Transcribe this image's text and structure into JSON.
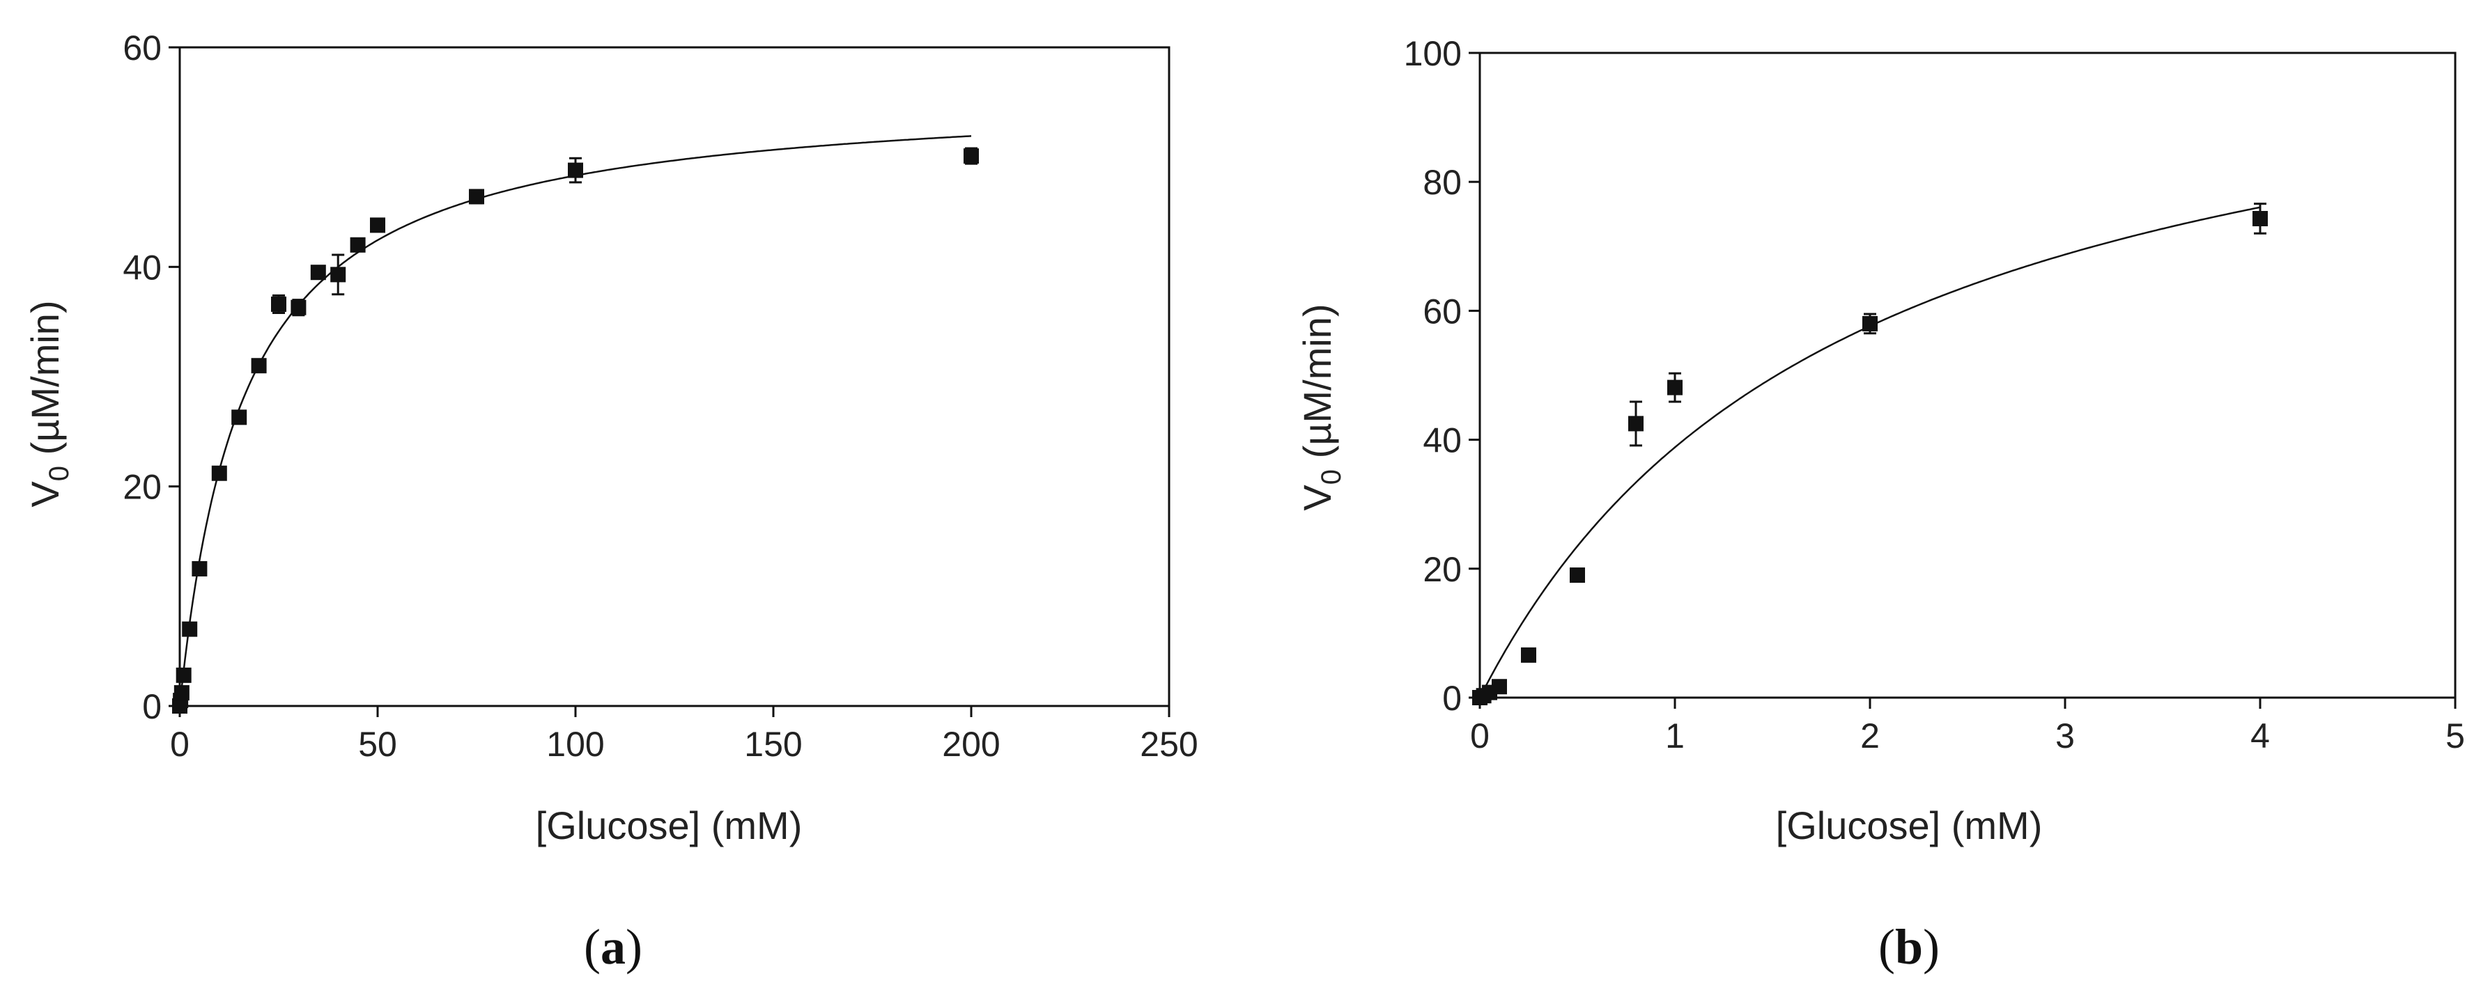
{
  "colors": {
    "ink": "#111111",
    "background": "#ffffff"
  },
  "panels": [
    {
      "label_open": "(",
      "label_letter": "a",
      "label_close": ")",
      "xlabel": "[Glucose] (mM)",
      "ylabel_main": "V",
      "ylabel_sub": "0",
      "ylabel_rest": " (µM/min)"
    },
    {
      "label_open": "(",
      "label_letter": "b",
      "label_close": ")",
      "xlabel": "[Glucose] (mM)",
      "ylabel_main": "V",
      "ylabel_sub": "0",
      "ylabel_rest": " (µM/min)"
    }
  ],
  "chart_data": [
    {
      "type": "scatter",
      "title": "",
      "xlabel": "[Glucose] (mM)",
      "ylabel": "V0 (µM/min)",
      "xlim": [
        0,
        250
      ],
      "ylim": [
        0,
        60
      ],
      "xticks": [
        0,
        50,
        100,
        150,
        200,
        250
      ],
      "yticks": [
        0,
        20,
        40,
        60
      ],
      "grid": false,
      "legend": "none",
      "series": [
        {
          "marker": "square",
          "x": [
            0,
            0.2,
            0.5,
            1,
            2.5,
            5,
            10,
            15,
            20,
            25,
            30,
            35,
            40,
            45,
            50,
            75,
            100,
            200
          ],
          "y": [
            0,
            0.5,
            1.2,
            2.8,
            7,
            12.5,
            21.2,
            26.3,
            31,
            36.6,
            36.3,
            39.5,
            39.3,
            42,
            43.8,
            46.4,
            48.8,
            50.1
          ],
          "err": [
            0,
            0,
            0,
            0,
            0,
            0,
            0,
            0,
            0.5,
            0.8,
            0.7,
            0,
            1.8,
            0,
            0,
            0.6,
            1.1,
            0.7
          ]
        }
      ],
      "fit": {
        "model": "michaelis-menten",
        "vmax": 56.1,
        "km": 16.1,
        "x_range": [
          0,
          200
        ]
      }
    },
    {
      "type": "scatter",
      "title": "",
      "xlabel": "[Glucose] (mM)",
      "ylabel": "V0 (µM/min)",
      "xlim": [
        0,
        5
      ],
      "ylim": [
        0,
        100
      ],
      "xticks": [
        0,
        1,
        2,
        3,
        4,
        5
      ],
      "yticks": [
        0,
        20,
        40,
        60,
        80,
        100
      ],
      "grid": false,
      "legend": "none",
      "series": [
        {
          "marker": "square",
          "x": [
            0,
            0.02,
            0.05,
            0.1,
            0.25,
            0.5,
            0.8,
            1,
            2,
            4
          ],
          "y": [
            0,
            0.3,
            0.8,
            1.7,
            6.6,
            19,
            42.5,
            48.1,
            58,
            74.3
          ],
          "err": [
            0,
            0,
            0,
            0,
            0,
            0,
            3.4,
            2.2,
            1.5,
            2.3
          ]
        }
      ],
      "fit": {
        "model": "michaelis-menten",
        "vmax": 111.8,
        "km": 1.88,
        "x_range": [
          0,
          4
        ]
      }
    }
  ]
}
